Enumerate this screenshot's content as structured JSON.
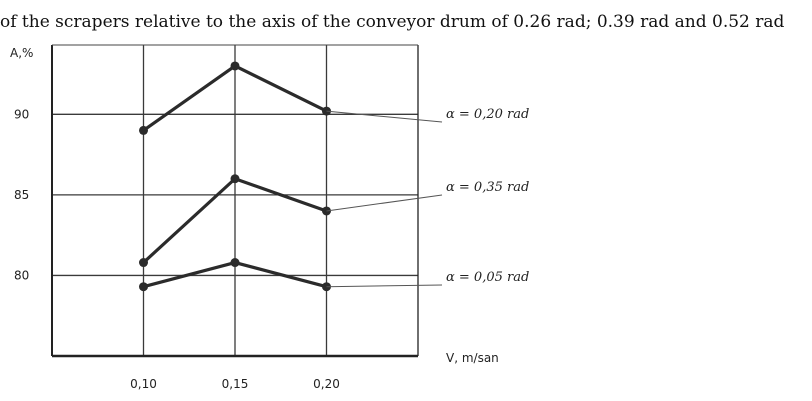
{
  "caption": "of the scrapers relative to the axis of the conveyor drum of 0.26 rad; 0.39 rad and 0.52 rad",
  "chart_data": {
    "type": "line",
    "xlabel": "V, m/san",
    "ylabel": "A,%",
    "x": [
      0.1,
      0.15,
      0.2
    ],
    "x_tick_labels": [
      "0,10",
      "0,15",
      "0,20"
    ],
    "y_tick_labels": [
      "90",
      "85",
      "80"
    ],
    "y_ticks": [
      90,
      85,
      80
    ],
    "xlim": [
      0.05,
      0.25
    ],
    "ylim": [
      75,
      94.3
    ],
    "grid": true,
    "series": [
      {
        "name": "α = 0,20 rad",
        "values": [
          89.0,
          93.0,
          90.2
        ]
      },
      {
        "name": "α = 0,35 rad",
        "values": [
          80.8,
          86.0,
          84.0
        ]
      },
      {
        "name": "α = 0,05 rad",
        "values": [
          79.3,
          80.8,
          79.3
        ]
      }
    ],
    "legend_placement": "right, next to each line end",
    "colors": {
      "line": "#2b2b2b",
      "grid": "#3a3a3a"
    }
  }
}
